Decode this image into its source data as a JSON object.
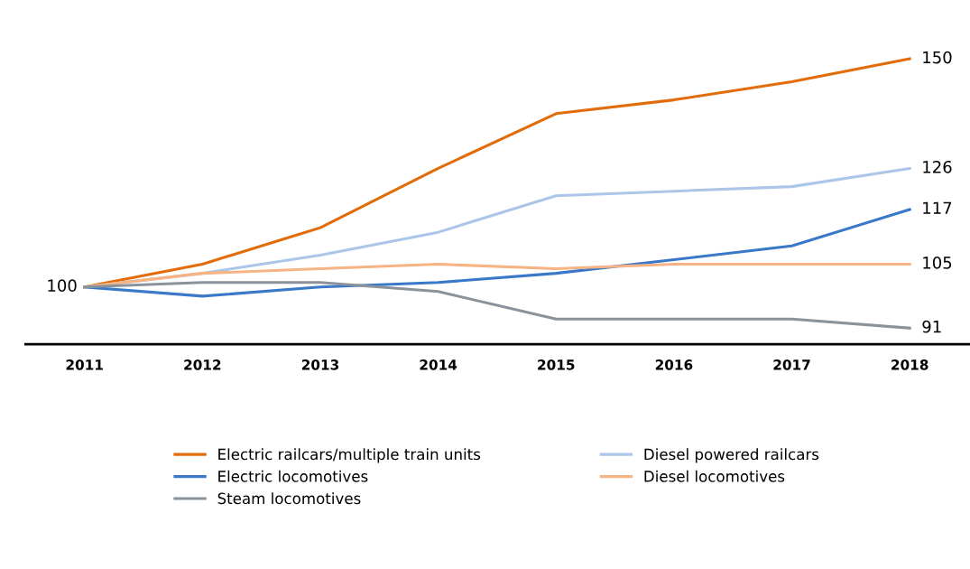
{
  "chart_data": {
    "type": "line",
    "categories": [
      "2011",
      "2012",
      "2013",
      "2014",
      "2015",
      "2016",
      "2017",
      "2018"
    ],
    "grid": false,
    "legend": "bottom",
    "marker": "none",
    "line_style": "solid",
    "tick_labels": "x",
    "series": [
      {
        "name": "Electric railcars/multiple train units",
        "color": "#e36c0a",
        "values": [
          100,
          105,
          113,
          126,
          138,
          141,
          145,
          150
        ],
        "value_labels": [
          "100",
          null,
          null,
          null,
          null,
          null,
          null,
          "150"
        ]
      },
      {
        "name": "Diesel powered railcars",
        "color": "#abc6e8",
        "values": [
          100,
          103,
          107,
          112,
          120,
          121,
          122,
          126
        ],
        "value_labels": [
          null,
          null,
          null,
          null,
          null,
          null,
          null,
          "126"
        ]
      },
      {
        "name": "Electric locomotives",
        "color": "#3a78c9",
        "values": [
          100,
          98,
          100,
          101,
          103,
          106,
          109,
          117
        ],
        "value_labels": [
          null,
          null,
          null,
          null,
          null,
          null,
          null,
          "117"
        ]
      },
      {
        "name": "Diesel locomotives",
        "color": "#f6b384",
        "values": [
          100,
          103,
          104,
          105,
          104,
          105,
          105,
          105
        ],
        "value_labels": [
          null,
          null,
          null,
          null,
          null,
          null,
          null,
          "105"
        ]
      },
      {
        "name": "Steam locomotives",
        "color": "#8a939c",
        "values": [
          100,
          101,
          101,
          99,
          93,
          93,
          93,
          91
        ],
        "value_labels": [
          null,
          null,
          null,
          null,
          null,
          null,
          null,
          "91"
        ]
      }
    ]
  }
}
